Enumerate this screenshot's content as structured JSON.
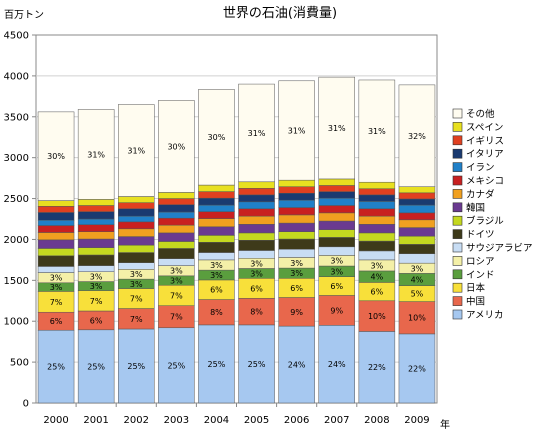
{
  "chart_data": {
    "type": "bar",
    "stacked": true,
    "title": "世界の石油(消費量)",
    "ylabel": "百万トン",
    "xlabel": "年",
    "ylim": [
      0,
      4500
    ],
    "yticks": [
      0,
      500,
      1000,
      1500,
      2000,
      2500,
      3000,
      3500,
      4000,
      4500
    ],
    "grid": true,
    "legend_position": "right",
    "categories": [
      "2000",
      "2001",
      "2002",
      "2003",
      "2004",
      "2005",
      "2006",
      "2007",
      "2008",
      "2009"
    ],
    "series": [
      {
        "name": "アメリカ",
        "color": "#a6c8f0",
        "values": [
          890,
          895,
          905,
          920,
          955,
          955,
          940,
          950,
          875,
          845
        ],
        "labels": [
          "25%",
          "25%",
          "25%",
          "25%",
          "25%",
          "25%",
          "24%",
          "24%",
          "22%",
          "22%"
        ]
      },
      {
        "name": "中国",
        "color": "#e8674c",
        "values": [
          220,
          230,
          250,
          270,
          310,
          325,
          350,
          365,
          375,
          395
        ],
        "labels": [
          "6%",
          "6%",
          "7%",
          "7%",
          "8%",
          "8%",
          "9%",
          "9%",
          "10%",
          "10%"
        ]
      },
      {
        "name": "日本",
        "color": "#f8e03a",
        "values": [
          255,
          250,
          245,
          250,
          240,
          245,
          235,
          230,
          225,
          195
        ],
        "labels": [
          "7%",
          "7%",
          "7%",
          "7%",
          "6%",
          "6%",
          "6%",
          "6%",
          "6%",
          "5%"
        ]
      },
      {
        "name": "インド",
        "color": "#5a9e3e",
        "values": [
          105,
          110,
          115,
          115,
          120,
          120,
          125,
          130,
          140,
          150
        ],
        "labels": [
          "3%",
          "3%",
          "3%",
          "3%",
          "3%",
          "3%",
          "3%",
          "3%",
          "4%",
          "4%"
        ]
      },
      {
        "name": "ロシア",
        "color": "#f4f0a8",
        "values": [
          125,
          120,
          120,
          125,
          125,
          125,
          130,
          130,
          135,
          125
        ],
        "labels": [
          "3%",
          "3%",
          "3%",
          "3%",
          "3%",
          "3%",
          "3%",
          "3%",
          "3%",
          "3%"
        ]
      },
      {
        "name": "サウジアラビア",
        "color": "#c8ddf4",
        "values": [
          75,
          75,
          80,
          85,
          90,
          95,
          100,
          105,
          110,
          115
        ],
        "labels": []
      },
      {
        "name": "ドイツ",
        "color": "#3e3a1a",
        "values": [
          130,
          130,
          125,
          125,
          125,
          125,
          125,
          115,
          120,
          115
        ],
        "labels": []
      },
      {
        "name": "ブラジル",
        "color": "#c4d820",
        "values": [
          90,
          90,
          90,
          85,
          85,
          90,
          90,
          95,
          100,
          100
        ],
        "labels": []
      },
      {
        "name": "韓国",
        "color": "#6a3a90",
        "values": [
          105,
          105,
          105,
          105,
          105,
          105,
          105,
          105,
          105,
          105
        ],
        "labels": []
      },
      {
        "name": "カナダ",
        "color": "#f0a020",
        "values": [
          90,
          90,
          95,
          95,
          100,
          100,
          100,
          100,
          100,
          95
        ],
        "labels": []
      },
      {
        "name": "メキシコ",
        "color": "#c82020",
        "values": [
          85,
          85,
          85,
          85,
          85,
          90,
          90,
          90,
          90,
          85
        ],
        "labels": []
      },
      {
        "name": "イラン",
        "color": "#2080c8",
        "values": [
          65,
          70,
          70,
          75,
          80,
          85,
          90,
          90,
          90,
          95
        ],
        "labels": []
      },
      {
        "name": "イタリア",
        "color": "#1a3a70",
        "values": [
          95,
          90,
          90,
          90,
          85,
          85,
          85,
          80,
          80,
          75
        ],
        "labels": []
      },
      {
        "name": "イギリス",
        "color": "#e04020",
        "values": [
          75,
          75,
          75,
          75,
          80,
          80,
          80,
          75,
          75,
          75
        ],
        "labels": []
      },
      {
        "name": "スペイン",
        "color": "#e8e020",
        "values": [
          70,
          75,
          75,
          75,
          80,
          80,
          80,
          80,
          80,
          75
        ],
        "labels": []
      },
      {
        "name": "その他",
        "color": "#fffcf0",
        "values": [
          1085,
          1100,
          1125,
          1125,
          1170,
          1195,
          1215,
          1245,
          1250,
          1245
        ],
        "labels": [
          "30%",
          "31%",
          "31%",
          "30%",
          "30%",
          "31%",
          "31%",
          "31%",
          "31%",
          "32%"
        ]
      }
    ]
  }
}
